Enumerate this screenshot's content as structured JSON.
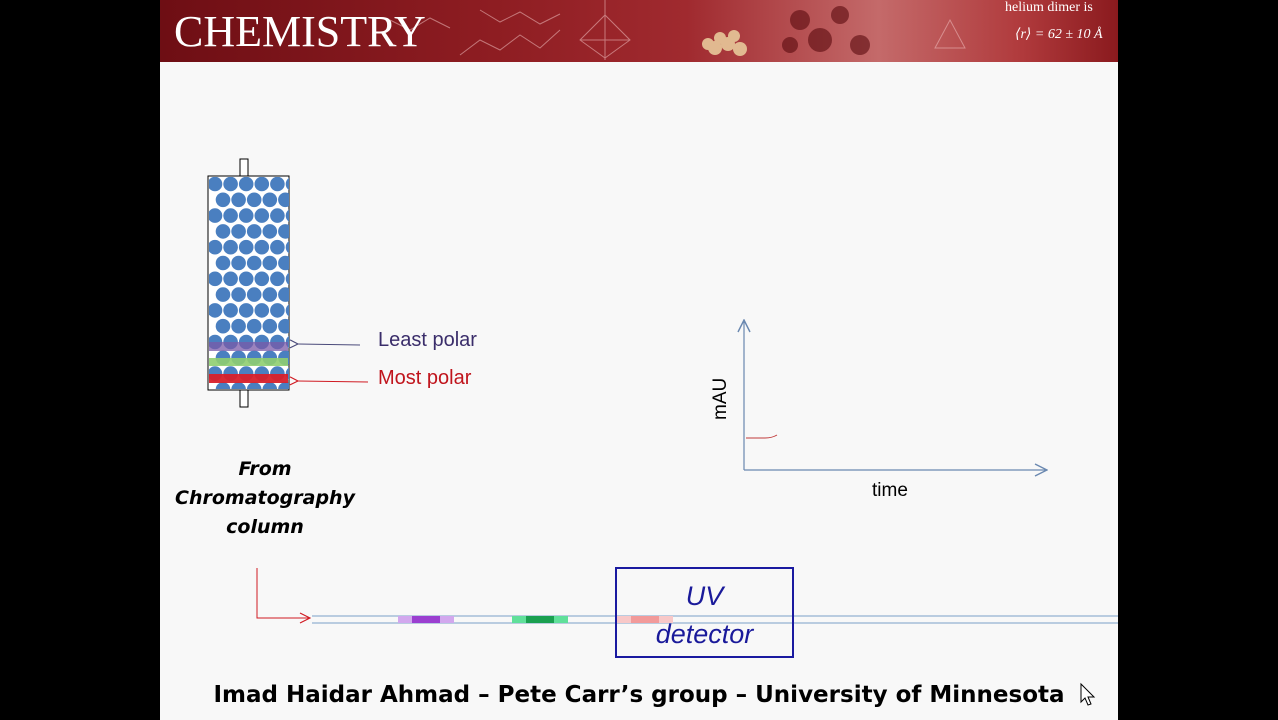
{
  "banner": {
    "title": "CHEMISTRY",
    "note_top": "helium dimer is",
    "note_formula": "⟨r⟩ = 62 ± 10 Å"
  },
  "column": {
    "bands": [
      {
        "name": "least-polar",
        "label": "Least polar",
        "color": "#7a5aa8"
      },
      {
        "name": "middle",
        "color": "#8fce70"
      },
      {
        "name": "most-polar",
        "label": "Most polar",
        "color": "#d8202a"
      }
    ],
    "packing_color": "#4a7fc0",
    "caption": [
      "From",
      "Chromatography",
      "column"
    ]
  },
  "colors": {
    "least_polar_text": "#3a2d6a",
    "most_polar_text": "#c0141c",
    "least_polar_arrow": "#4a4a7a",
    "most_polar_arrow": "#d01a22",
    "axis": "#6a88b0",
    "tube": "#7aa0c8",
    "signal": "#c03a3a"
  },
  "tube_bands": [
    {
      "name": "purple-band",
      "color": "#9b3fd0",
      "edge": "#d2a8ee"
    },
    {
      "name": "green-band",
      "color": "#1aa050",
      "edge": "#60e09a"
    },
    {
      "name": "red-band",
      "color": "#f29a9a",
      "edge": "#f8c8c8"
    }
  ],
  "detector": {
    "line1": "UV",
    "line2": "detector"
  },
  "chromatogram": {
    "y_label": "mAU",
    "x_label": "time"
  },
  "footer": "Imad Haidar Ahmad – Pete Carr’s group – University of Minnesota"
}
